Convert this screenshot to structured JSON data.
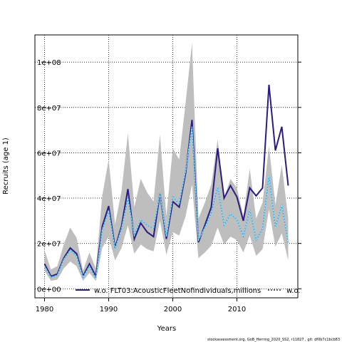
{
  "chart_data": {
    "type": "line",
    "xlabel": "Years",
    "ylabel": "Recruits (age 1)",
    "xlim": [
      1978.5,
      2019.5
    ],
    "ylim": [
      -4000000,
      112000000
    ],
    "x_ticks": [
      1980,
      1990,
      2000,
      2010
    ],
    "y_ticks": [
      0,
      20000000,
      40000000,
      60000000,
      80000000,
      100000000
    ],
    "x_tick_labels": [
      "1980",
      "1990",
      "2000",
      "2010"
    ],
    "y_tick_labels": [
      "0e+00",
      "2e+07",
      "4e+07",
      "6e+07",
      "8e+07",
      "1e+08"
    ],
    "grid": true,
    "legend_position": "bottom",
    "footer": "stockassessment.org,  GoB_Herring_2020_SS2,  r11827 ,  git: df0b7c1bcb83",
    "x": [
      1980,
      1981,
      1982,
      1983,
      1984,
      1985,
      1986,
      1987,
      1988,
      1989,
      1990,
      1991,
      1992,
      1993,
      1994,
      1995,
      1996,
      1997,
      1998,
      1999,
      2000,
      2001,
      2002,
      2003,
      2004,
      2005,
      2006,
      2007,
      2008,
      2009,
      2010,
      2011,
      2012,
      2013,
      2014,
      2015,
      2016,
      2017,
      2018
    ],
    "band": {
      "color": "#bebebe",
      "lower": [
        8000000,
        3500000,
        4000000,
        9000000,
        12000000,
        10000000,
        3500000,
        7000000,
        3500000,
        18000000,
        23000000,
        12500000,
        18000000,
        28000000,
        15500000,
        19500000,
        17500000,
        16500000,
        30000000,
        15000000,
        25000000,
        23500000,
        32000000,
        46000000,
        13500000,
        16000000,
        19000000,
        27000000,
        19500000,
        23000000,
        21500000,
        16000000,
        23500000,
        14500000,
        17500000,
        35000000,
        18500000,
        24500000,
        12500000
      ],
      "upper": [
        17000000,
        8500000,
        10000000,
        19500000,
        27000000,
        22500000,
        8000000,
        16000000,
        9000000,
        41000000,
        57000000,
        28500000,
        43000000,
        68500000,
        36000000,
        48500000,
        42500000,
        38500000,
        68000000,
        32000000,
        62000000,
        57000000,
        82000000,
        108500000,
        31000000,
        38000000,
        46000000,
        66000000,
        40000000,
        48500000,
        44500000,
        32000000,
        53000000,
        31000000,
        38000000,
        63000000,
        37000000,
        54500000,
        31000000
      ]
    },
    "series": [
      {
        "name": "w.o. FLT03:AcousticFleetNofindividuals,millions",
        "color": "#2d1b7e",
        "values": [
          11000000,
          5500000,
          6500000,
          13500000,
          18000000,
          15500000,
          5500000,
          11000000,
          5500000,
          27500000,
          36500000,
          18000000,
          27500000,
          44000000,
          22000000,
          29000000,
          25000000,
          23000000,
          42000000,
          22000000,
          38500000,
          36000000,
          51000000,
          74500000,
          20500000,
          28000000,
          36000000,
          62000000,
          40000000,
          45500000,
          40500000,
          30000000,
          44500000,
          41000000,
          44500000,
          90000000,
          61000000,
          71500000,
          45500000
        ]
      },
      {
        "name": "w.o.",
        "color": "#38b2e8",
        "values": [
          10000000,
          5000000,
          6000000,
          13000000,
          17000000,
          14500000,
          5000000,
          10000000,
          4500000,
          26000000,
          34500000,
          17500000,
          26500000,
          40000000,
          23500000,
          30500000,
          28000000,
          26500000,
          42000000,
          23000000,
          40500000,
          37500000,
          52000000,
          71500000,
          21500000,
          27000000,
          33500000,
          45000000,
          28000000,
          33000000,
          30500000,
          23000000,
          35000000,
          21500000,
          26500000,
          50000000,
          27000000,
          37000000,
          20000000
        ]
      }
    ]
  }
}
